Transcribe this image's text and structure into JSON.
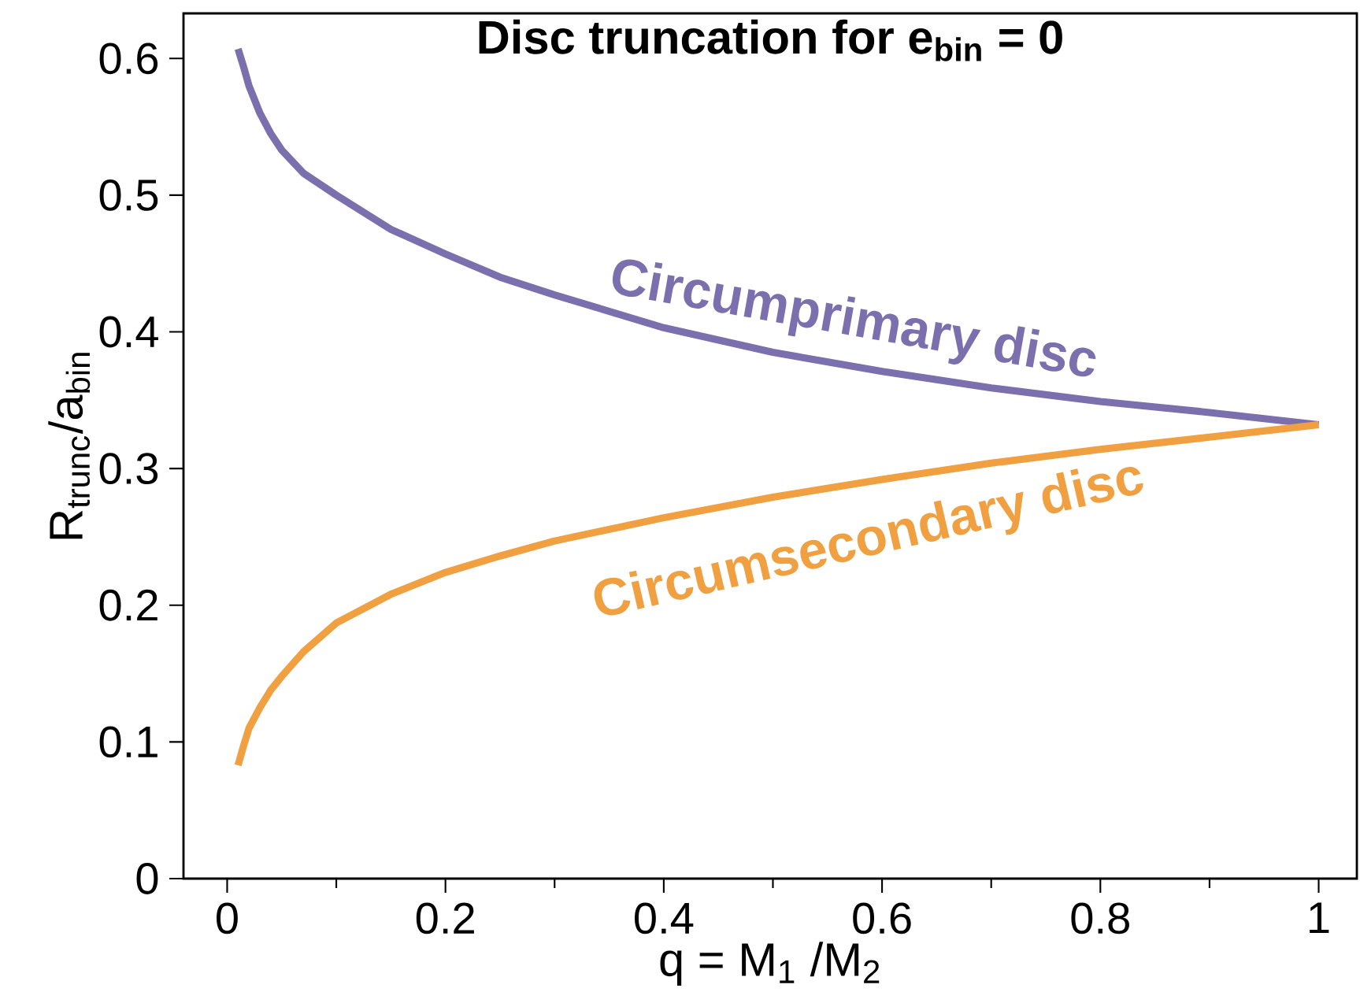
{
  "chart_data": {
    "type": "line",
    "title": "Disc truncation for e$_{bin}$ = 0",
    "xlabel": "q = M$_{1}$ /M$_{2}$",
    "ylabel": "R$_{trunc}$/a$_{bin}$",
    "x": [
      0.01,
      0.015,
      0.02,
      0.03,
      0.04,
      0.05,
      0.07,
      0.1,
      0.15,
      0.2,
      0.25,
      0.3,
      0.4,
      0.5,
      0.6,
      0.7,
      0.8,
      0.9,
      1.0
    ],
    "series": [
      {
        "name": "Circumprimary disc",
        "color": "#7b6fae",
        "values": [
          0.607,
          0.594,
          0.58,
          0.56,
          0.545,
          0.533,
          0.516,
          0.5,
          0.475,
          0.457,
          0.44,
          0.427,
          0.403,
          0.385,
          0.371,
          0.359,
          0.349,
          0.341,
          0.332
        ]
      },
      {
        "name": "Circumsecondary disc",
        "color": "#f0a040",
        "values": [
          0.083,
          0.097,
          0.11,
          0.125,
          0.138,
          0.148,
          0.166,
          0.187,
          0.208,
          0.224,
          0.236,
          0.247,
          0.264,
          0.279,
          0.292,
          0.304,
          0.314,
          0.323,
          0.332
        ]
      }
    ],
    "xlim": [
      -0.04,
      1.035
    ],
    "ylim": [
      0,
      0.633
    ],
    "xticks": [
      0,
      {
        "value": 0.1,
        "label": null
      },
      0.2,
      {
        "value": 0.3,
        "label": null
      },
      0.4,
      {
        "value": 0.5,
        "label": null
      },
      0.6,
      {
        "value": 0.7,
        "label": null
      },
      0.8,
      {
        "value": 0.9,
        "label": null
      },
      1
    ],
    "yticks": [
      0,
      0.1,
      0.2,
      0.3,
      0.4,
      0.5,
      0.6
    ],
    "grid": false,
    "marker": "none",
    "line_style": "solid"
  }
}
